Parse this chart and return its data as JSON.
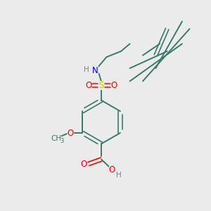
{
  "bg_color": "#ebebeb",
  "bond_color": "#3a7a6a",
  "N_color": "#0000ee",
  "O_color": "#ff0000",
  "S_color": "#cccc00",
  "H_color": "#808080",
  "figsize": [
    3.0,
    3.0
  ],
  "dpi": 100,
  "xlim": [
    0,
    10
  ],
  "ylim": [
    0,
    10
  ]
}
